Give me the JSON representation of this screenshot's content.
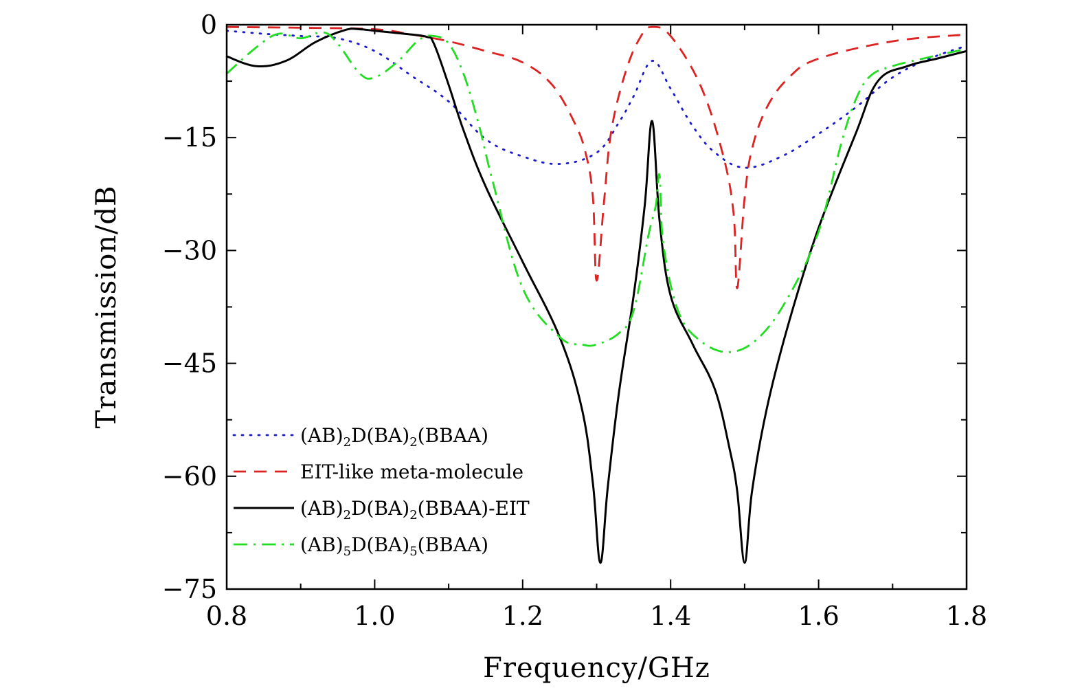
{
  "chart_data": {
    "type": "line",
    "title": "",
    "xlabel": "Frequency/GHz",
    "ylabel": "Transmission/dB",
    "xlim": [
      0.8,
      1.8
    ],
    "ylim": [
      -75,
      0
    ],
    "x_ticks": [
      0.8,
      1.0,
      1.2,
      1.4,
      1.6,
      1.8
    ],
    "x_tick_labels": [
      "0.8",
      "1.0",
      "1.2",
      "1.4",
      "1.6",
      "1.8"
    ],
    "y_ticks": [
      0,
      -15,
      -30,
      -45,
      -60,
      -75
    ],
    "y_tick_labels": [
      "0",
      "−15",
      "−30",
      "−45",
      "−60",
      "−75"
    ],
    "grid": false,
    "legend_position": "bottom-left",
    "series": [
      {
        "legend_parts": [
          [
            "(AB)",
            ""
          ],
          [
            "2",
            "sub"
          ],
          [
            "D(BA)",
            ""
          ],
          [
            "2",
            "sub"
          ],
          [
            "(BBAA)",
            ""
          ]
        ],
        "color": "#1a1acc",
        "style": "dotted",
        "x": [
          0.8,
          0.85,
          0.9,
          0.95,
          1.0,
          1.05,
          1.1,
          1.15,
          1.2,
          1.25,
          1.3,
          1.33,
          1.35,
          1.375,
          1.4,
          1.43,
          1.46,
          1.5,
          1.55,
          1.6,
          1.65,
          1.7,
          1.75,
          1.8
        ],
        "y": [
          -0.8,
          -1.2,
          -1.5,
          -1.8,
          -3.5,
          -6.8,
          -10.2,
          -15.2,
          -17.5,
          -18.5,
          -17.0,
          -13.0,
          -9.5,
          -4.8,
          -8.5,
          -13.5,
          -17.0,
          -19.0,
          -17.5,
          -14.5,
          -11.0,
          -7.0,
          -4.5,
          -2.8
        ]
      },
      {
        "legend_parts": [
          [
            "EIT-like meta-molecule",
            ""
          ]
        ],
        "color": "#dd2222",
        "style": "dashed",
        "x": [
          0.8,
          0.9,
          1.0,
          1.05,
          1.1,
          1.15,
          1.2,
          1.24,
          1.27,
          1.285,
          1.295,
          1.3,
          1.31,
          1.32,
          1.34,
          1.36,
          1.375,
          1.4,
          1.44,
          1.47,
          1.485,
          1.49,
          1.5,
          1.51,
          1.53,
          1.56,
          1.6,
          1.7,
          1.8
        ],
        "y": [
          -0.3,
          -0.4,
          -0.6,
          -1.3,
          -2.2,
          -3.5,
          -5.0,
          -8.0,
          -13.0,
          -17.0,
          -23.0,
          -34.0,
          -23.5,
          -14.0,
          -6.0,
          -1.5,
          -0.3,
          -1.5,
          -8.0,
          -17.0,
          -25.0,
          -35.0,
          -23.0,
          -16.5,
          -11.0,
          -7.0,
          -4.5,
          -2.2,
          -1.3
        ]
      },
      {
        "legend_parts": [
          [
            "(AB)",
            ""
          ],
          [
            "2",
            "sub"
          ],
          [
            "D(BA)",
            ""
          ],
          [
            "2",
            "sub"
          ],
          [
            "(BBAA)-EIT",
            ""
          ]
        ],
        "color": "#000000",
        "style": "solid",
        "x": [
          0.8,
          0.84,
          0.88,
          0.92,
          0.96,
          0.98,
          1.0,
          1.04,
          1.07,
          1.08,
          1.1,
          1.12,
          1.15,
          1.2,
          1.25,
          1.28,
          1.295,
          1.305,
          1.315,
          1.33,
          1.35,
          1.365,
          1.375,
          1.385,
          1.4,
          1.43,
          1.46,
          1.48,
          1.49,
          1.5,
          1.51,
          1.53,
          1.56,
          1.6,
          1.65,
          1.68,
          1.72,
          1.76,
          1.8
        ],
        "y": [
          -4.2,
          -5.5,
          -4.8,
          -2.3,
          -0.7,
          -0.6,
          -0.8,
          -1.2,
          -1.6,
          -2.5,
          -8.0,
          -14.0,
          -21.5,
          -31.5,
          -41.5,
          -51.0,
          -61.0,
          -71.5,
          -61.5,
          -49.0,
          -36.0,
          -24.0,
          -12.8,
          -26.0,
          -36.0,
          -42.5,
          -48.5,
          -56.5,
          -62.0,
          -71.5,
          -62.0,
          -51.0,
          -39.5,
          -27.0,
          -14.5,
          -7.5,
          -5.5,
          -4.5,
          -3.5
        ]
      },
      {
        "legend_parts": [
          [
            "(AB)",
            ""
          ],
          [
            "5",
            "sub"
          ],
          [
            "D(BA)",
            ""
          ],
          [
            "5",
            "sub"
          ],
          [
            "(BBAA)",
            ""
          ]
        ],
        "color": "#22dd22",
        "style": "dashdot",
        "x": [
          0.8,
          0.84,
          0.87,
          0.9,
          0.93,
          0.95,
          0.98,
          1.0,
          1.03,
          1.06,
          1.08,
          1.1,
          1.12,
          1.14,
          1.16,
          1.2,
          1.25,
          1.28,
          1.3,
          1.33,
          1.35,
          1.37,
          1.38,
          1.385,
          1.39,
          1.41,
          1.44,
          1.48,
          1.52,
          1.56,
          1.6,
          1.63,
          1.65,
          1.67,
          1.7,
          1.75,
          1.8
        ],
        "y": [
          -6.5,
          -3.0,
          -1.2,
          -1.8,
          -1.0,
          -2.5,
          -6.5,
          -7.0,
          -5.0,
          -2.0,
          -1.5,
          -2.5,
          -6.5,
          -13.0,
          -21.0,
          -35.0,
          -41.5,
          -42.5,
          -42.5,
          -41.0,
          -38.0,
          -28.0,
          -24.0,
          -20.0,
          -29.0,
          -38.0,
          -42.0,
          -43.5,
          -41.5,
          -36.0,
          -27.5,
          -16.0,
          -10.0,
          -6.8,
          -5.5,
          -4.3,
          -3.2
        ]
      }
    ]
  }
}
